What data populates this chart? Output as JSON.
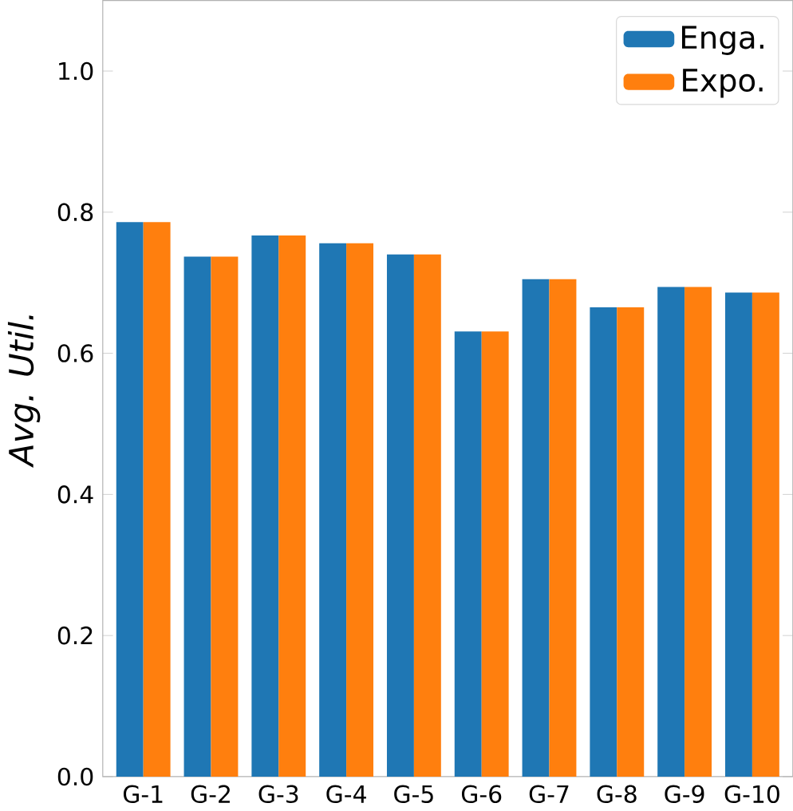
{
  "chart_data": {
    "type": "bar",
    "ylabel": "*Avg. Util.*",
    "categories": [
      "G-1",
      "G-2",
      "G-3",
      "G-4",
      "G-5",
      "G-6",
      "G-7",
      "G-8",
      "G-9",
      "G-10"
    ],
    "series": [
      {
        "name": "Enga.",
        "color": "#1f77b4",
        "values": [
          0.786,
          0.737,
          0.767,
          0.756,
          0.74,
          0.631,
          0.705,
          0.665,
          0.694,
          0.686
        ]
      },
      {
        "name": "Expo.",
        "color": "#ff7f0e",
        "values": [
          0.786,
          0.737,
          0.767,
          0.756,
          0.74,
          0.631,
          0.705,
          0.665,
          0.694,
          0.686
        ]
      }
    ],
    "ylim": [
      0,
      1.1
    ],
    "yticks": [
      {
        "value": 0,
        "label": "0.0"
      },
      {
        "value": 0.2,
        "label": "0.2"
      },
      {
        "value": 0.4,
        "label": "0.4"
      },
      {
        "value": 0.6,
        "label": "0.6"
      },
      {
        "value": 0.8,
        "label": "0.8"
      },
      {
        "value": 1.0,
        "label": "1.0"
      }
    ],
    "grid": false,
    "legend": "top right"
  }
}
